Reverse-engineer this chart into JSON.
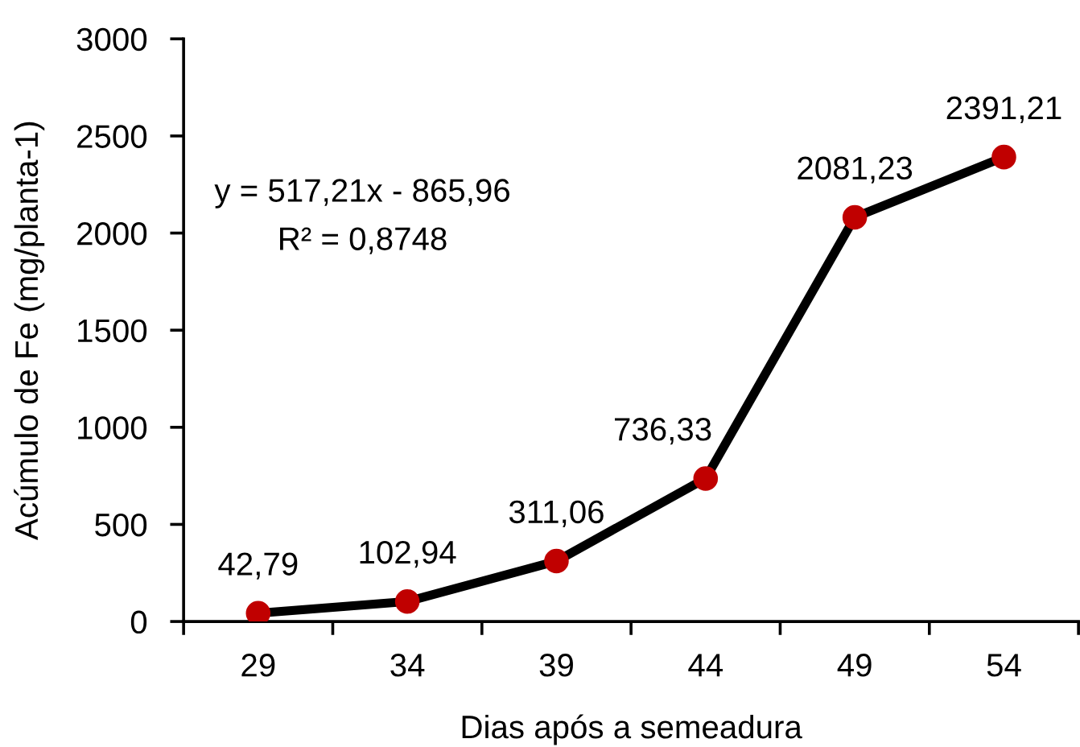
{
  "chart_data": {
    "type": "line",
    "xlabel": "Dias após a semeadura",
    "ylabel": "Acúmulo de Fe (mg/planta-1)",
    "annotations": [
      "y = 517,21x - 865,96",
      "R² = 0,8748"
    ],
    "categories": [
      "29",
      "34",
      "39",
      "44",
      "49",
      "54"
    ],
    "series": [
      {
        "color": "#000000",
        "colors": [
          "#c00000",
          "#c00000",
          "#c00000",
          "#c00000",
          "#c00000",
          "#c00000"
        ],
        "values": [
          42.79,
          102.94,
          311.06,
          736.33,
          2081.23,
          2391.21
        ],
        "value_labels": [
          "42,79",
          "102,94",
          "311,06",
          "736,33",
          "2081,23",
          "2391,21"
        ]
      }
    ],
    "ylim": [
      0,
      3000
    ],
    "yticks": [
      0,
      500,
      1000,
      1500,
      2000,
      2500,
      3000
    ],
    "marker": "circle",
    "line_style": "solid"
  }
}
